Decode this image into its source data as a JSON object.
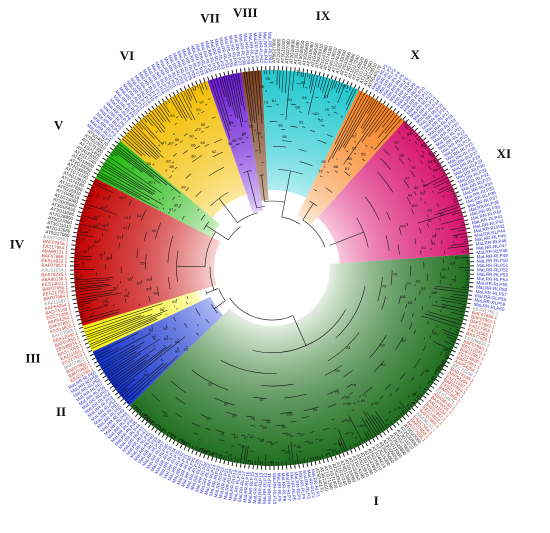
{
  "figure": {
    "clades": [
      {
        "label": "I",
        "start": 86,
        "end": 225,
        "inner": "#f1f8ee",
        "outer": "#1e6e1e"
      },
      {
        "label": "II",
        "start": 226,
        "end": 244,
        "inner": "#cfd6ff",
        "outer": "#0f2fcc"
      },
      {
        "label": "III",
        "start": 245,
        "end": 252,
        "inner": "#ffffff",
        "outer": "#f7f200"
      },
      {
        "label": "IV",
        "start": 253,
        "end": 296,
        "inner": "#fbe3e3",
        "outer": "#c40000"
      },
      {
        "label": "V",
        "start": 297,
        "end": 309,
        "inner": "#eefbe9",
        "outer": "#22b80f"
      },
      {
        "label": "VI",
        "start": 310,
        "end": 340,
        "inner": "#fff7d6",
        "outer": "#f2be00"
      },
      {
        "label": "VII",
        "start": 341,
        "end": 350,
        "inner": "#ecdcff",
        "outer": "#6a18d6"
      },
      {
        "label": "VIII",
        "start": 351,
        "end": 356,
        "inner": "#d9c6b8",
        "outer": "#7a3b1a"
      },
      {
        "label": "IX",
        "start": 357,
        "end": 25,
        "inner": "#e6fbfc",
        "outer": "#20c8cf"
      },
      {
        "label": "X",
        "start": 26,
        "end": 41,
        "inner": "#fff0e0",
        "outer": "#f7801c"
      },
      {
        "label": "XI",
        "start": 42,
        "end": 85,
        "inner": "#ffe9f3",
        "outer": "#d8136f"
      }
    ],
    "tip_labels": [
      "AT5G27060",
      "AT2G32680",
      "AT3G11010",
      "AT5G27060",
      "AT2G28890",
      "AT3G11080",
      "AT3G05650",
      "AT3G05660",
      "AT2G15080",
      "AT1G45616",
      "AT5G25910",
      "AT1G47890",
      "AT1G74180",
      "AT4G13810",
      "AT1G74190",
      "AT2G33050",
      "AT2G33060",
      "AT4G13880",
      "AT1G17240",
      "AT2G33020",
      "AT1G71400",
      "AT1G71390",
      "AT3G23010",
      "AT5G40170",
      "MaLRR-RLP1",
      "MaLRR-RLP2",
      "MaLRR-RLP3",
      "MaLRR-RLP4",
      "MaLRR-RLP5",
      "MaLRR-RLP6",
      "MaLRR-RLP7",
      "MaLRR-RLP8",
      "MaLRR-RLP9",
      "MaLRR-RLP10",
      "MaLRR-RLP11",
      "MaLRR-RLP12",
      "MaLRR-RLP13",
      "MaLRR-RLP14",
      "MaLRR-RLP15",
      "MaLRR-RLP16",
      "MaLRR-RLP17",
      "MaLRR-RLP18",
      "MaLRR-RLP19",
      "MaLRR-RLP20",
      "MaLRR-RLP21",
      "MaLRR-RLP22",
      "MaLRR-RLP23",
      "MaLRR-RLP24",
      "MaLRR-RLP25",
      "MaLRR-RLP26",
      "MaLRR-RLP27",
      "MaLRR-RLP28",
      "MaLRR-RLP29",
      "MaLRR-RLP30",
      "MaLRR-RLP31",
      "MaLRR-RLP32",
      "MaLRR-RLP33",
      "MaLRR-RLP34",
      "MaLRR-RLP35",
      "MaLRR-RLP36",
      "MaLRR-RLP37",
      "MaLRR-RLP38",
      "MaLRR-RLP39",
      "MaLRR-RLP40",
      "MaLRR-RLP41",
      "MaLRR-RLP42",
      "MaLRR-RLP43",
      "MaLRR-RLP44",
      "MaLRR-RLP45",
      "MaLRR-RLP46",
      "MaLRR-RLP47",
      "MaLRR-RLP48",
      "MaLRR-RLP49",
      "MaLRR-RLP50",
      "MaLRR-RLP51",
      "MaLRR-RLP52",
      "MaLRR-RLP53",
      "MaLRR-RLP54",
      "MaLRR-RLP55",
      "MaLRR-RLP56",
      "MaLRR-RLP57",
      "MaLRR-RLP58",
      "MaLRR-RLP59",
      "MaLRR-RLP60",
      "EES21786.1",
      "BAF07860.1",
      "BAF07861.1",
      "BAF07862.1",
      "EAZ17953.1",
      "EAZ11565.1",
      "BAS77055.1",
      "EES08934.1",
      "BAF07850.1",
      "EES12040.1",
      "BAF07863.1",
      "EES14820.1",
      "BAF07851.1",
      "AAP54254.1",
      "EEC71268.1",
      "BAD73168.1",
      "AAP54264.1",
      "EAZ11567.1",
      "BAF07864.1",
      "EES21790.1",
      "BAF07855.1",
      "EES14821.1",
      "ABA98130.1",
      "BAS76225.1",
      "AAU11634.1",
      "BAF07857.1",
      "EES14822.1",
      "BAF07866.1",
      "ABA98131.1",
      "EAZ17954.1",
      "BAF07858.1",
      "BAS77056.1"
    ],
    "tip_colors": [
      "#1a1a1a",
      "#2b2bd0",
      "#c0392b",
      "#8a8a8a"
    ],
    "bootstraps": [
      "100",
      "99",
      "98",
      "97",
      "95",
      "94",
      "93",
      "92",
      "90",
      "89",
      "88",
      "87",
      "85",
      "84",
      "82",
      "81",
      "80",
      "78",
      "77",
      "76",
      "75",
      "74",
      "73",
      "71",
      "70",
      "69",
      "68",
      "67",
      "66",
      "65",
      "63",
      "62",
      "61",
      "60",
      "59",
      "58",
      "57",
      "56",
      "55",
      "54",
      "53",
      "52",
      "51",
      "50"
    ]
  }
}
